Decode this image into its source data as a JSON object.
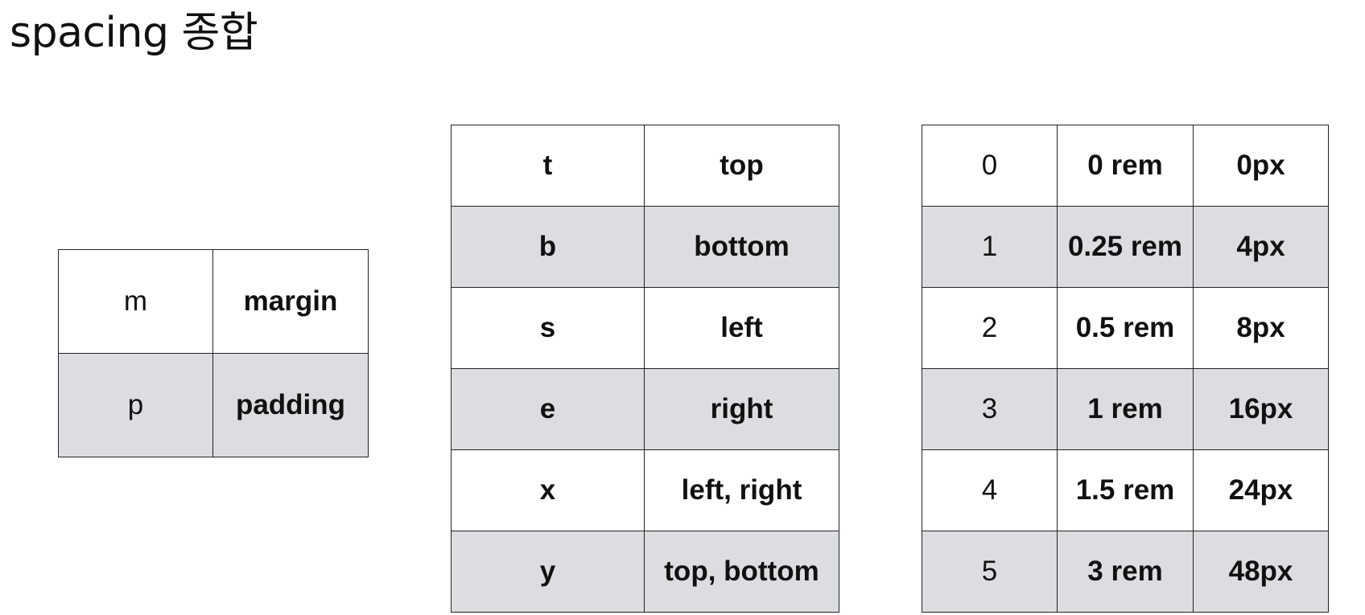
{
  "title": "spacing 종합",
  "prefix_table": {
    "rows": [
      {
        "key": "m",
        "value": "margin",
        "shaded": false
      },
      {
        "key": "p",
        "value": "padding",
        "shaded": true
      }
    ]
  },
  "direction_table": {
    "rows": [
      {
        "key": "t",
        "value": "top",
        "shaded": false
      },
      {
        "key": "b",
        "value": "bottom",
        "shaded": true
      },
      {
        "key": "s",
        "value": "left",
        "shaded": false
      },
      {
        "key": "e",
        "value": "right",
        "shaded": true
      },
      {
        "key": "x",
        "value": "left, right",
        "shaded": false
      },
      {
        "key": "y",
        "value": "top, bottom",
        "shaded": true
      }
    ]
  },
  "size_table": {
    "rows": [
      {
        "step": "0",
        "rem": "0 rem",
        "px": "0px",
        "shaded": false
      },
      {
        "step": "1",
        "rem": "0.25 rem",
        "px": "4px",
        "shaded": true
      },
      {
        "step": "2",
        "rem": "0.5 rem",
        "px": "8px",
        "shaded": false
      },
      {
        "step": "3",
        "rem": "1 rem",
        "px": "16px",
        "shaded": true
      },
      {
        "step": "4",
        "rem": "1.5 rem",
        "px": "24px",
        "shaded": false
      },
      {
        "step": "5",
        "rem": "3 rem",
        "px": "48px",
        "shaded": true
      }
    ]
  },
  "colors": {
    "shaded_row": "#dcdde1",
    "border": "#222222",
    "text": "#111111",
    "background": "#ffffff"
  }
}
